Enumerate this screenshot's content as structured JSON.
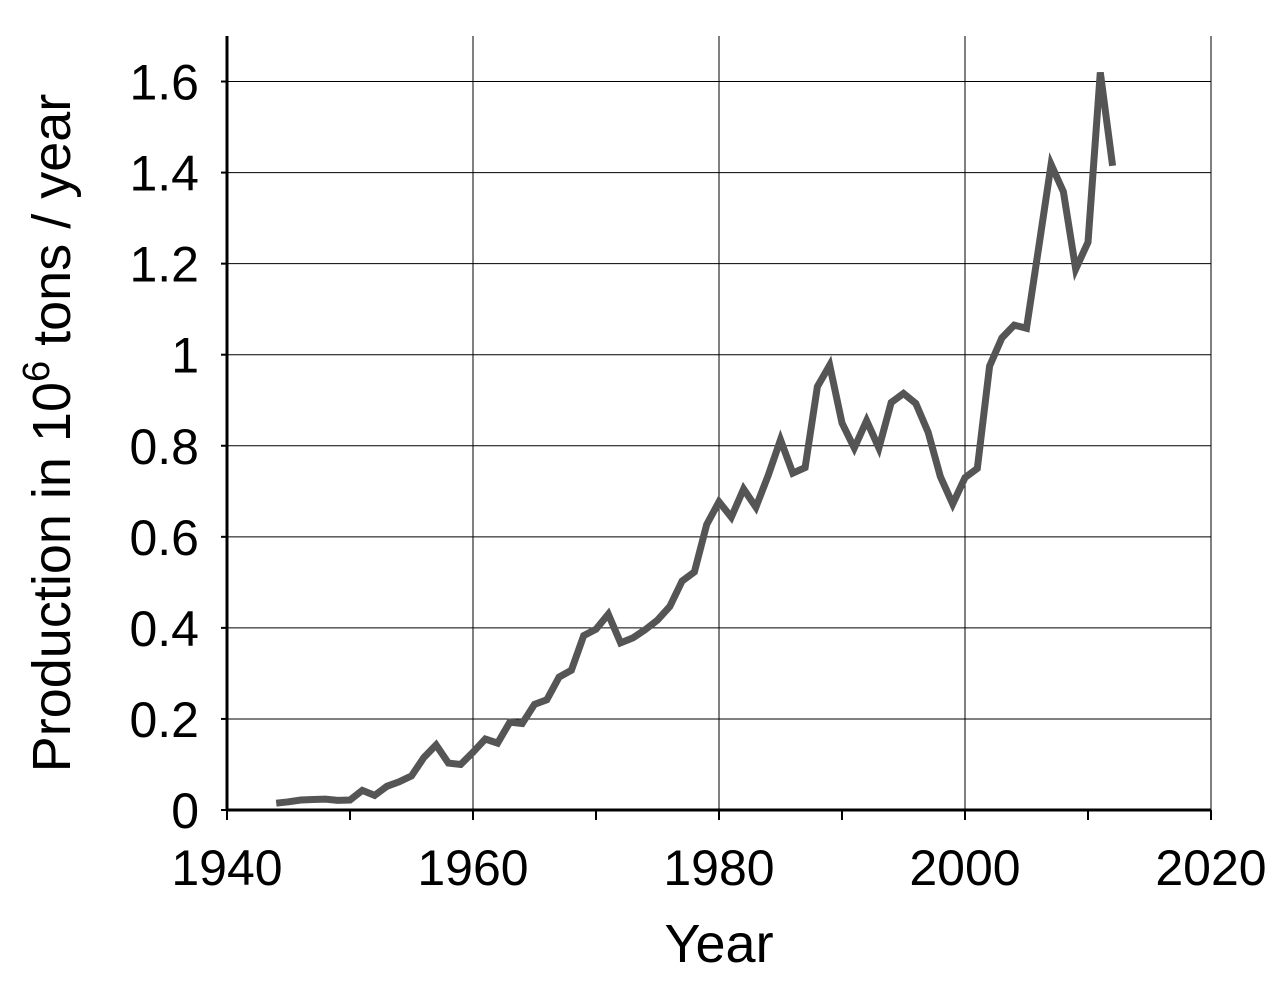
{
  "chart_data": {
    "type": "line",
    "title": "",
    "xlabel": "Year",
    "ylabel": {
      "prefix": "Production in 10",
      "superscript": "6",
      "suffix": " tons / year"
    },
    "xlim": [
      1940,
      2020
    ],
    "ylim": [
      0,
      1.7
    ],
    "xticks": [
      1940,
      1960,
      1980,
      2000,
      2020
    ],
    "xtick_labels": [
      "1940",
      "1960",
      "1980",
      "2000",
      "2020"
    ],
    "xminor_step": 10,
    "yticks": [
      0,
      0.2,
      0.4,
      0.6,
      0.8,
      1.0,
      1.2,
      1.4,
      1.6
    ],
    "ytick_labels": [
      "0",
      "0.2",
      "0.4",
      "0.6",
      "0.8",
      "1",
      "1.2",
      "1.4",
      "1.6"
    ],
    "grid": true,
    "legend": "none",
    "line_color": "#555555",
    "series": [
      {
        "x": [
          1944,
          1945,
          1946,
          1947,
          1948,
          1949,
          1950,
          1951,
          1952,
          1953,
          1954,
          1955,
          1956,
          1957,
          1958,
          1959,
          1960,
          1961,
          1962,
          1963,
          1964,
          1965,
          1966,
          1967,
          1968,
          1969,
          1970,
          1971,
          1972,
          1973,
          1974,
          1975,
          1976,
          1977,
          1978,
          1979,
          1980,
          1981,
          1982,
          1983,
          1984,
          1985,
          1986,
          1987,
          1988,
          1989,
          1990,
          1991,
          1992,
          1993,
          1994,
          1995,
          1996,
          1997,
          1998,
          1999,
          2000,
          2001,
          2002,
          2003,
          2004,
          2005,
          2006,
          2007,
          2008,
          2009,
          2010,
          2011,
          2012
        ],
        "y": [
          0.015,
          0.018,
          0.022,
          0.023,
          0.024,
          0.021,
          0.022,
          0.043,
          0.032,
          0.052,
          0.062,
          0.075,
          0.115,
          0.143,
          0.103,
          0.1,
          0.127,
          0.156,
          0.147,
          0.193,
          0.19,
          0.232,
          0.242,
          0.292,
          0.307,
          0.383,
          0.397,
          0.43,
          0.367,
          0.378,
          0.396,
          0.417,
          0.447,
          0.503,
          0.523,
          0.627,
          0.677,
          0.643,
          0.705,
          0.665,
          0.735,
          0.813,
          0.74,
          0.752,
          0.93,
          0.977,
          0.85,
          0.795,
          0.855,
          0.795,
          0.895,
          0.915,
          0.893,
          0.83,
          0.732,
          0.672,
          0.73,
          0.75,
          0.975,
          1.037,
          1.065,
          1.058,
          1.237,
          1.418,
          1.358,
          1.188,
          1.247,
          1.62,
          1.415
        ]
      }
    ]
  }
}
